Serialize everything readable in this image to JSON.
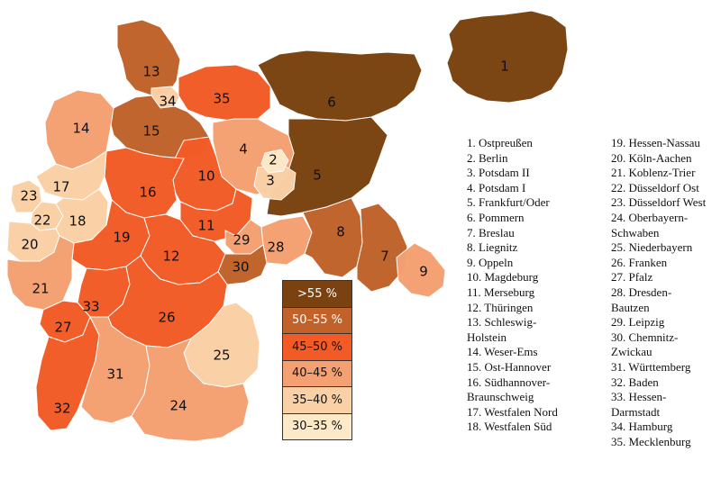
{
  "legend": [
    {
      "label": ">55 %",
      "color": "#7a4210",
      "text_color": "#ffffff"
    },
    {
      "label": "50–55 %",
      "color": "#c0622a",
      "text_color": "#ffffff"
    },
    {
      "label": "45–50 %",
      "color": "#f25b25",
      "text_color": "#111111"
    },
    {
      "label": "40–45 %",
      "color": "#f4a072",
      "text_color": "#111111"
    },
    {
      "label": "35–40 %",
      "color": "#fad0a6",
      "text_color": "#111111"
    },
    {
      "label": "30–35 %",
      "color": "#fde9c8",
      "text_color": "#111111"
    }
  ],
  "districts": [
    {
      "num": "1",
      "name": "Ostpreußen",
      "band": 0
    },
    {
      "num": "2",
      "name": "Berlin",
      "band": 5
    },
    {
      "num": "3",
      "name": "Potsdam II",
      "band": 4
    },
    {
      "num": "4",
      "name": "Potsdam I",
      "band": 3
    },
    {
      "num": "5",
      "name": "Frankfurt/Oder",
      "band": 0
    },
    {
      "num": "6",
      "name": "Pommern",
      "band": 0
    },
    {
      "num": "7",
      "name": "Breslau",
      "band": 1
    },
    {
      "num": "8",
      "name": "Liegnitz",
      "band": 1
    },
    {
      "num": "9",
      "name": "Oppeln",
      "band": 3
    },
    {
      "num": "10",
      "name": "Magdeburg",
      "band": 2
    },
    {
      "num": "11",
      "name": "Merseburg",
      "band": 2
    },
    {
      "num": "12",
      "name": "Thüringen",
      "band": 2
    },
    {
      "num": "13",
      "name": "Schleswig-Holstein",
      "band": 1
    },
    {
      "num": "14",
      "name": "Weser-Ems",
      "band": 3
    },
    {
      "num": "15",
      "name": "Ost-Hannover",
      "band": 1
    },
    {
      "num": "16",
      "name": "Südhannover-Braunschweig",
      "band": 2
    },
    {
      "num": "17",
      "name": "Westfalen Nord",
      "band": 4
    },
    {
      "num": "18",
      "name": "Westfalen Süd",
      "band": 4
    },
    {
      "num": "19",
      "name": "Hessen-Nassau",
      "band": 2
    },
    {
      "num": "20",
      "name": "Köln-Aachen",
      "band": 4
    },
    {
      "num": "21",
      "name": "Koblenz-Trier",
      "band": 3
    },
    {
      "num": "22",
      "name": "Düsseldorf Ost",
      "band": 4
    },
    {
      "num": "23",
      "name": "Düsseldorf West",
      "band": 4
    },
    {
      "num": "24",
      "name": "Oberbayern-Schwaben",
      "band": 3
    },
    {
      "num": "25",
      "name": "Niederbayern",
      "band": 4
    },
    {
      "num": "26",
      "name": "Franken",
      "band": 2
    },
    {
      "num": "27",
      "name": "Pfalz",
      "band": 2
    },
    {
      "num": "28",
      "name": "Dresden-Bautzen",
      "band": 3
    },
    {
      "num": "29",
      "name": "Leipzig",
      "band": 3
    },
    {
      "num": "30",
      "name": "Chemnitz-Zwickau",
      "band": 1
    },
    {
      "num": "31",
      "name": "Württemberg",
      "band": 3
    },
    {
      "num": "32",
      "name": "Baden",
      "band": 2
    },
    {
      "num": "33",
      "name": "Hessen-Darmstadt",
      "band": 2
    },
    {
      "num": "34",
      "name": "Hamburg",
      "band": 4
    },
    {
      "num": "35",
      "name": "Mecklenburg",
      "band": 2
    }
  ],
  "list_left": [
    "1. Ostpreußen",
    "2. Berlin",
    "3. Potsdam II",
    "4. Potsdam I",
    "5. Frankfurt/Oder",
    "6. Pommern",
    "7. Breslau",
    "8. Liegnitz",
    "9. Oppeln",
    "10. Magdeburg",
    "11. Merseburg",
    "12. Thüringen",
    "13. Schleswig-",
    "Holstein",
    "14. Weser-Ems",
    "15. Ost-Hannover",
    "16. Südhannover-",
    "Braunschweig",
    "17. Westfalen Nord",
    "18. Westfalen Süd"
  ],
  "list_right": [
    "19. Hessen-Nassau",
    "20. Köln-Aachen",
    "21. Koblenz-Trier",
    "22. Düsseldorf Ost",
    "23. Düsseldorf West",
    "24. Oberbayern-",
    "Schwaben",
    "25. Niederbayern",
    "26. Franken",
    "27. Pfalz",
    "28. Dresden-",
    "Bautzen",
    "29. Leipzig",
    "30. Chemnitz-",
    "Zwickau",
    "31. Württemberg",
    "32. Baden",
    "33. Hessen-",
    "Darmstadt",
    "34. Hamburg",
    "35. Mecklenburg"
  ]
}
